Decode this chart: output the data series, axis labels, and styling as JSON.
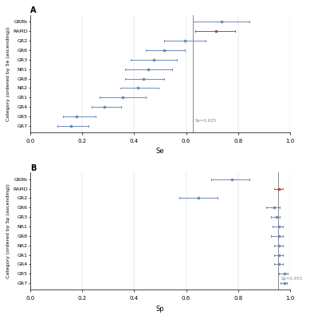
{
  "panel_A": {
    "title": "A",
    "xlabel": "Se",
    "ylabel": "Category (ordered by Se (ascending))",
    "categories": [
      "GR7",
      "GR5",
      "GR4",
      "GR1",
      "NR2",
      "GR8",
      "NR1",
      "GR3",
      "GR6",
      "GR2",
      "RAPID",
      "GR8b"
    ],
    "se_values": [
      0.155,
      0.178,
      0.285,
      0.355,
      0.415,
      0.435,
      0.455,
      0.475,
      0.515,
      0.595,
      0.715,
      0.735
    ],
    "se_lower": [
      0.105,
      0.125,
      0.235,
      0.265,
      0.345,
      0.365,
      0.365,
      0.385,
      0.445,
      0.515,
      0.635,
      0.625
    ],
    "se_upper": [
      0.225,
      0.25,
      0.35,
      0.445,
      0.495,
      0.515,
      0.545,
      0.565,
      0.595,
      0.675,
      0.79,
      0.845
    ],
    "vline": 0.625,
    "vline_label": "Se=0.625",
    "xlim": [
      0,
      1.0
    ],
    "rapid_color": "#b5473a",
    "other_color": "#6d8bb5",
    "vline_color": "#888888"
  },
  "panel_B": {
    "title": "B",
    "xlabel": "Sp",
    "ylabel": "Category (ordered by Sp (ascending))",
    "categories": [
      "GR7",
      "GR5",
      "GR4",
      "GR1",
      "NR2",
      "GR8",
      "NR1",
      "GR3",
      "GR6",
      "GR2",
      "RAPID",
      "GR8b"
    ],
    "sp_values": [
      0.978,
      0.978,
      0.958,
      0.958,
      0.958,
      0.958,
      0.958,
      0.948,
      0.938,
      0.648,
      0.958,
      0.775
    ],
    "sp_lower": [
      0.963,
      0.958,
      0.938,
      0.938,
      0.938,
      0.928,
      0.932,
      0.928,
      0.908,
      0.575,
      0.938,
      0.695
    ],
    "sp_upper": [
      0.988,
      0.99,
      0.972,
      0.972,
      0.972,
      0.974,
      0.974,
      0.962,
      0.96,
      0.722,
      0.974,
      0.845
    ],
    "vline": 0.955,
    "vline_label": "Sp=0.955",
    "xlim": [
      0,
      1.0
    ],
    "rapid_color": "#b5473a",
    "other_color": "#6d8bb5",
    "vline_color": "#888888"
  }
}
